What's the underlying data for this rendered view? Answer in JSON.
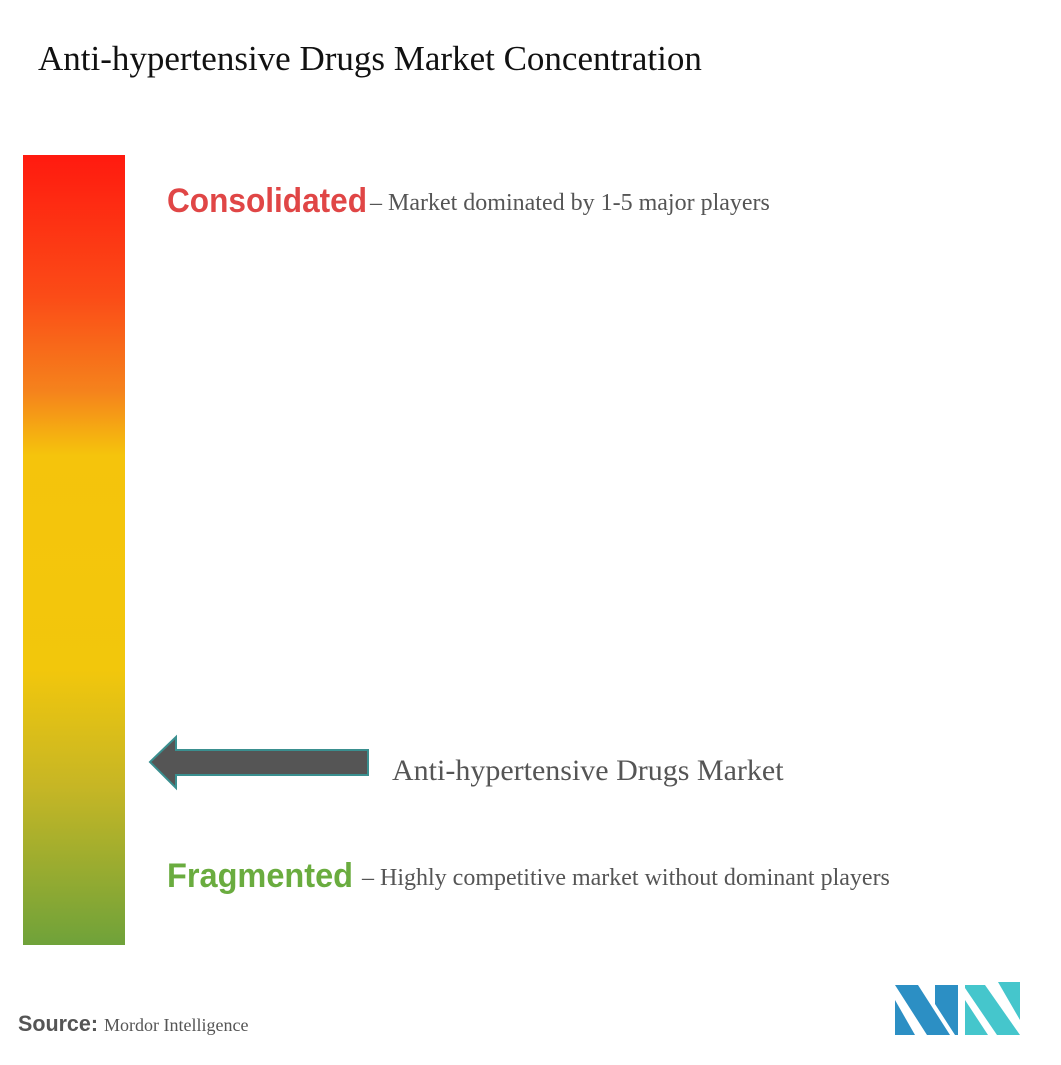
{
  "title": "Anti-hypertensive Drugs Market Concentration",
  "consolidated": {
    "label": "Consolidated",
    "description": "– Market dominated by 1-5 major players"
  },
  "market": {
    "label": "Anti-hypertensive Drugs Market"
  },
  "fragmented": {
    "label": "Fragmented",
    "description": "– Highly competitive market without dominant players"
  },
  "source": {
    "label": "Source:",
    "value": "Mordor Intelligence"
  }
}
